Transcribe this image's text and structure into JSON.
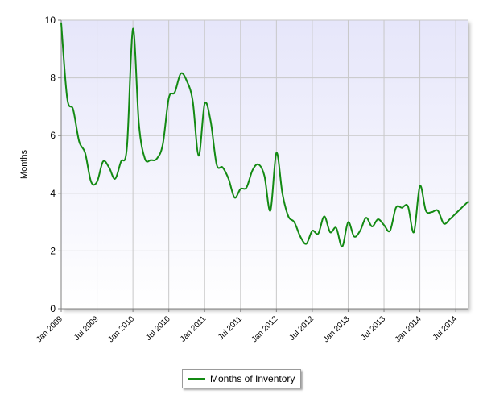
{
  "chart_data": {
    "type": "line",
    "title": "",
    "xlabel": "",
    "ylabel": "Months",
    "ylim": [
      0,
      10
    ],
    "yticks": [
      0,
      2,
      4,
      6,
      8,
      10
    ],
    "xlim": [
      "2009-01",
      "2014-09"
    ],
    "xticks": [
      {
        "date": "2009-01",
        "label": "Jan 2009"
      },
      {
        "date": "2009-07",
        "label": "Jul 2009"
      },
      {
        "date": "2010-01",
        "label": "Jan 2010"
      },
      {
        "date": "2010-07",
        "label": "Jul 2010"
      },
      {
        "date": "2011-01",
        "label": "Jan 2011"
      },
      {
        "date": "2011-07",
        "label": "Jul 2011"
      },
      {
        "date": "2012-01",
        "label": "Jan 2012"
      },
      {
        "date": "2012-07",
        "label": "Jul 2012"
      },
      {
        "date": "2013-01",
        "label": "Jan 2013"
      },
      {
        "date": "2013-07",
        "label": "Jul 2013"
      },
      {
        "date": "2014-01",
        "label": "Jan 2014"
      },
      {
        "date": "2014-07",
        "label": "Jul 2014"
      }
    ],
    "grid": true,
    "legend_position": "bottom-center",
    "colors": {
      "line": "#138a13",
      "plot_top": "#e6e6fa",
      "plot_bottom": "#ffffff",
      "grid": "#c8c8c8"
    },
    "series": [
      {
        "name": "Months of Inventory",
        "points": [
          [
            "2009-01",
            9.9
          ],
          [
            "2009-02",
            7.3
          ],
          [
            "2009-03",
            6.9
          ],
          [
            "2009-04",
            5.8
          ],
          [
            "2009-05",
            5.4
          ],
          [
            "2009-06",
            4.4
          ],
          [
            "2009-07",
            4.4
          ],
          [
            "2009-08",
            5.1
          ],
          [
            "2009-09",
            4.9
          ],
          [
            "2009-10",
            4.5
          ],
          [
            "2009-11",
            5.1
          ],
          [
            "2009-12",
            5.6
          ],
          [
            "2010-01",
            9.7
          ],
          [
            "2010-02",
            6.4
          ],
          [
            "2010-03",
            5.2
          ],
          [
            "2010-04",
            5.15
          ],
          [
            "2010-05",
            5.2
          ],
          [
            "2010-06",
            5.7
          ],
          [
            "2010-07",
            7.3
          ],
          [
            "2010-08",
            7.5
          ],
          [
            "2010-09",
            8.15
          ],
          [
            "2010-10",
            7.9
          ],
          [
            "2010-11",
            7.2
          ],
          [
            "2010-12",
            5.3
          ],
          [
            "2011-01",
            7.1
          ],
          [
            "2011-02",
            6.5
          ],
          [
            "2011-03",
            5.0
          ],
          [
            "2011-04",
            4.9
          ],
          [
            "2011-05",
            4.5
          ],
          [
            "2011-06",
            3.85
          ],
          [
            "2011-07",
            4.15
          ],
          [
            "2011-08",
            4.2
          ],
          [
            "2011-09",
            4.8
          ],
          [
            "2011-10",
            5.0
          ],
          [
            "2011-11",
            4.6
          ],
          [
            "2011-12",
            3.4
          ],
          [
            "2012-01",
            5.4
          ],
          [
            "2012-02",
            4.0
          ],
          [
            "2012-03",
            3.2
          ],
          [
            "2012-04",
            3.0
          ],
          [
            "2012-05",
            2.5
          ],
          [
            "2012-06",
            2.25
          ],
          [
            "2012-07",
            2.7
          ],
          [
            "2012-08",
            2.6
          ],
          [
            "2012-09",
            3.2
          ],
          [
            "2012-10",
            2.65
          ],
          [
            "2012-11",
            2.8
          ],
          [
            "2012-12",
            2.15
          ],
          [
            "2013-01",
            3.0
          ],
          [
            "2013-02",
            2.5
          ],
          [
            "2013-03",
            2.7
          ],
          [
            "2013-04",
            3.15
          ],
          [
            "2013-05",
            2.85
          ],
          [
            "2013-06",
            3.1
          ],
          [
            "2013-07",
            2.9
          ],
          [
            "2013-08",
            2.7
          ],
          [
            "2013-09",
            3.5
          ],
          [
            "2013-10",
            3.5
          ],
          [
            "2013-11",
            3.55
          ],
          [
            "2013-12",
            2.65
          ],
          [
            "2014-01",
            4.25
          ],
          [
            "2014-02",
            3.4
          ],
          [
            "2014-03",
            3.35
          ],
          [
            "2014-04",
            3.4
          ],
          [
            "2014-05",
            2.95
          ],
          [
            "2014-06",
            3.1
          ],
          [
            "2014-07",
            3.3
          ],
          [
            "2014-08",
            3.5
          ],
          [
            "2014-09",
            3.7
          ]
        ]
      }
    ]
  }
}
